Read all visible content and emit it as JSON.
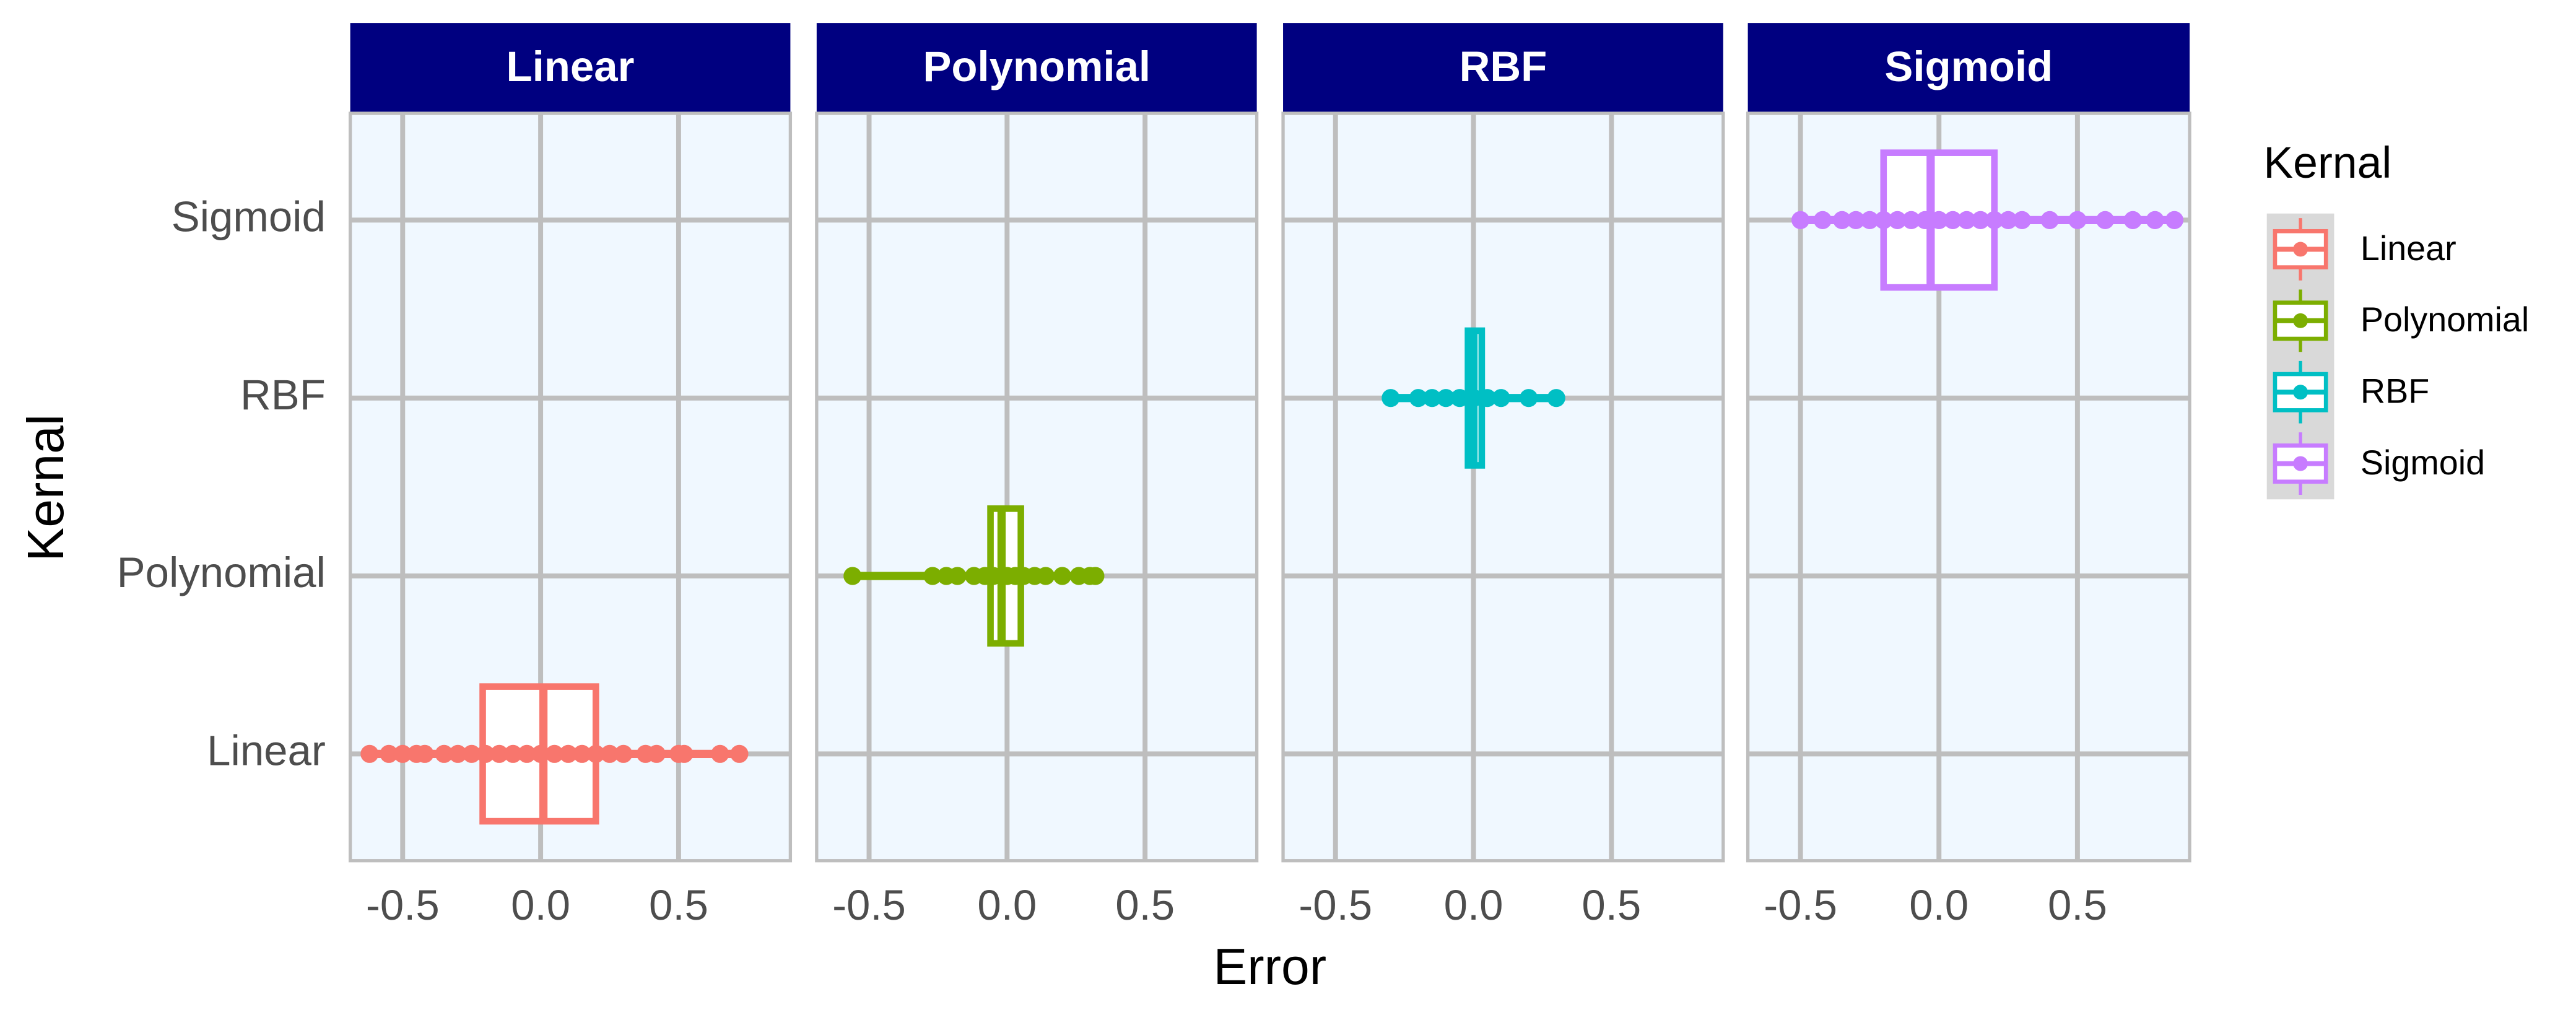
{
  "chart_data": {
    "type": "boxplot",
    "x_label": "Error",
    "y_label": "Kernal",
    "legend_title": "Kernal",
    "legend_position": "right",
    "grid": true,
    "categories": [
      "Linear",
      "Polynomial",
      "RBF",
      "Sigmoid"
    ],
    "xlim": [
      -0.69,
      0.905
    ],
    "xticks": [
      -0.5,
      {
        "value": 0,
        "label": "0.0"
      },
      0.5
    ],
    "series": [
      {
        "name": "Linear",
        "color": "#F8766D",
        "min": -0.62,
        "q1": -0.21,
        "median": 0.01,
        "q3": 0.2,
        "max": 0.72,
        "points": [
          -0.62,
          -0.55,
          -0.5,
          -0.45,
          -0.42,
          -0.35,
          -0.3,
          -0.25,
          -0.2,
          -0.15,
          -0.1,
          -0.05,
          0,
          0.05,
          0.1,
          0.15,
          0.2,
          0.25,
          0.3,
          0.38,
          0.42,
          0.5,
          0.52,
          0.65,
          0.72
        ]
      },
      {
        "name": "Polynomial",
        "color": "#7CAE00",
        "min": -0.56,
        "q1": -0.06,
        "median": -0.02,
        "q3": 0.05,
        "max": 0.32,
        "points": [
          -0.56,
          -0.27,
          -0.22,
          -0.18,
          -0.12,
          -0.08,
          -0.05,
          -0.02,
          0,
          0.03,
          0.06,
          0.1,
          0.14,
          0.2,
          0.26,
          0.3,
          0.32
        ]
      },
      {
        "name": "RBF",
        "color": "#00BFC4",
        "min": -0.3,
        "q1": -0.02,
        "median": 0,
        "q3": 0.03,
        "max": 0.3,
        "points": [
          -0.3,
          -0.2,
          -0.15,
          -0.1,
          -0.05,
          0,
          0.05,
          0.1,
          0.2,
          0.3
        ]
      },
      {
        "name": "Sigmoid",
        "color": "#C77CFF",
        "min": -0.5,
        "q1": -0.2,
        "median": -0.03,
        "q3": 0.2,
        "max": 0.85,
        "points": [
          -0.5,
          -0.42,
          -0.35,
          -0.3,
          -0.25,
          -0.2,
          -0.15,
          -0.1,
          -0.05,
          0,
          0.05,
          0.1,
          0.15,
          0.2,
          0.25,
          0.3,
          0.4,
          0.5,
          0.6,
          0.7,
          0.78,
          0.85
        ]
      }
    ]
  }
}
